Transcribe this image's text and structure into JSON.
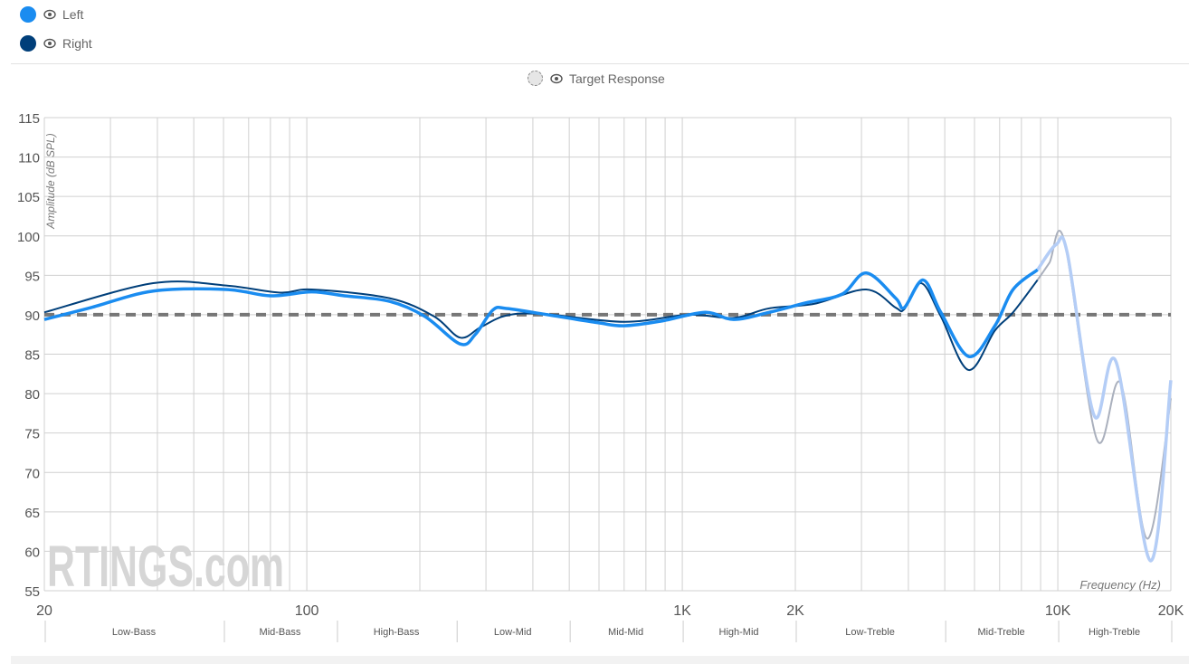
{
  "legend": {
    "items": [
      {
        "label": "Left",
        "color": "#1a8cf0",
        "icon": "eye-icon"
      },
      {
        "label": "Right",
        "color": "#003f7a",
        "icon": "eye-icon"
      }
    ],
    "target": {
      "label": "Target Response",
      "icon": "eye-icon"
    }
  },
  "watermark": "RTINGS.com",
  "chart_data": {
    "type": "line",
    "xlabel": "Frequency (Hz)",
    "ylabel": "Amplitude (dB SPL)",
    "xscale": "log",
    "xlim": [
      20,
      20000
    ],
    "ylim": [
      55,
      115
    ],
    "grid": true,
    "x_ticks": [
      {
        "v": 20,
        "label": "20"
      },
      {
        "v": 100,
        "label": "100"
      },
      {
        "v": 1000,
        "label": "1K"
      },
      {
        "v": 2000,
        "label": "2K"
      },
      {
        "v": 10000,
        "label": "10K"
      },
      {
        "v": 20000,
        "label": "20K"
      }
    ],
    "y_ticks": [
      55,
      60,
      65,
      70,
      75,
      80,
      85,
      90,
      95,
      100,
      105,
      110,
      115
    ],
    "target_level": 90,
    "bands": [
      {
        "label": "Low-Bass",
        "from": 20,
        "to": 60
      },
      {
        "label": "Mid-Bass",
        "from": 60,
        "to": 120
      },
      {
        "label": "High-Bass",
        "from": 120,
        "to": 250
      },
      {
        "label": "Low-Mid",
        "from": 250,
        "to": 500
      },
      {
        "label": "Mid-Mid",
        "from": 500,
        "to": 1000
      },
      {
        "label": "High-Mid",
        "from": 1000,
        "to": 2000
      },
      {
        "label": "Low-Treble",
        "from": 2000,
        "to": 5000
      },
      {
        "label": "Mid-Treble",
        "from": 5000,
        "to": 10000
      },
      {
        "label": "High-Treble",
        "from": 10000,
        "to": 20000
      }
    ],
    "series": [
      {
        "name": "Left",
        "color": "#1a8cf0",
        "faded_color": "#b4cdf6",
        "fade_from": 8830,
        "points": [
          [
            20,
            89.4
          ],
          [
            26.6,
            90.9
          ],
          [
            39,
            93.0
          ],
          [
            61,
            93.2
          ],
          [
            80,
            92.4
          ],
          [
            103,
            92.9
          ],
          [
            126,
            92.4
          ],
          [
            166,
            91.7
          ],
          [
            206,
            89.8
          ],
          [
            256,
            86.3
          ],
          [
            281,
            87.5
          ],
          [
            313,
            90.6
          ],
          [
            340,
            90.8
          ],
          [
            425,
            90.1
          ],
          [
            594,
            89.0
          ],
          [
            700,
            88.6
          ],
          [
            880,
            89.2
          ],
          [
            1150,
            90.3
          ],
          [
            1370,
            89.4
          ],
          [
            1700,
            90.3
          ],
          [
            2130,
            91.5
          ],
          [
            2660,
            92.6
          ],
          [
            3090,
            95.3
          ],
          [
            3700,
            92.1
          ],
          [
            3900,
            90.9
          ],
          [
            4380,
            94.4
          ],
          [
            4880,
            90.3
          ],
          [
            5800,
            84.7
          ],
          [
            6800,
            88.6
          ],
          [
            7600,
            93.2
          ],
          [
            8830,
            95.7
          ],
          [
            9900,
            98.9
          ],
          [
            10600,
            97.8
          ],
          [
            12500,
            77.2
          ],
          [
            14300,
            84.0
          ],
          [
            17650,
            58.8
          ],
          [
            20000,
            81.7
          ]
        ]
      },
      {
        "name": "Right",
        "color": "#003f7a",
        "faded_color": "#aab0bd",
        "fade_from": 8830,
        "points": [
          [
            20,
            90.3
          ],
          [
            39,
            94.0
          ],
          [
            61,
            93.7
          ],
          [
            85,
            92.8
          ],
          [
            103,
            93.2
          ],
          [
            166,
            92.1
          ],
          [
            218,
            89.8
          ],
          [
            256,
            87.1
          ],
          [
            290,
            88.4
          ],
          [
            340,
            89.9
          ],
          [
            425,
            90.1
          ],
          [
            700,
            89.1
          ],
          [
            1040,
            90.0
          ],
          [
            1370,
            89.6
          ],
          [
            1700,
            90.8
          ],
          [
            2250,
            91.4
          ],
          [
            3090,
            93.2
          ],
          [
            3700,
            90.9
          ],
          [
            3900,
            90.7
          ],
          [
            4330,
            94.0
          ],
          [
            4880,
            89.8
          ],
          [
            5780,
            83.0
          ],
          [
            6800,
            88.0
          ],
          [
            7600,
            90.3
          ],
          [
            8830,
            94.4
          ],
          [
            9500,
            96.6
          ],
          [
            10400,
            99.4
          ],
          [
            12700,
            74.2
          ],
          [
            14700,
            81.3
          ],
          [
            17300,
            61.6
          ],
          [
            20000,
            79.4
          ]
        ]
      }
    ]
  }
}
